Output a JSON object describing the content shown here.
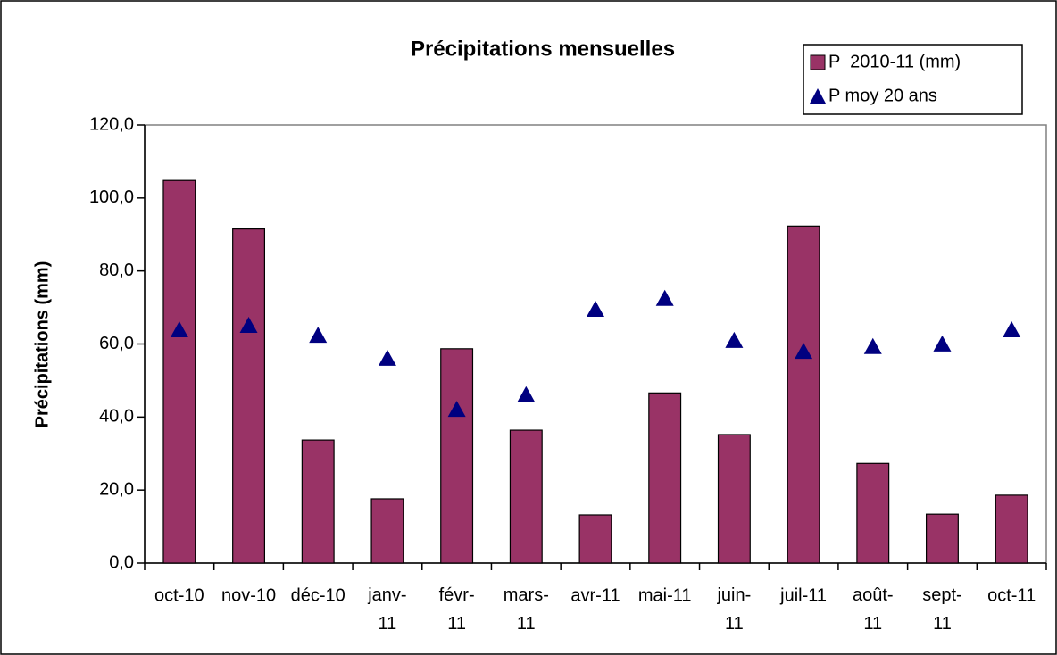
{
  "chart_data": {
    "type": "bar",
    "title": "Précipitations mensuelles",
    "y_label": "Précipitations (mm)",
    "categories": [
      "oct-10",
      "nov-10",
      "déc-10",
      "janv-11",
      "févr-11",
      "mars-11",
      "avr-11",
      "mai-11",
      "juin-11",
      "juil-11",
      "août-11",
      "sept-11",
      "oct-11"
    ],
    "series": [
      {
        "name": "P  2010-11 (mm)",
        "type": "bar",
        "color": "#993366",
        "values": [
          104.8,
          91.5,
          33.7,
          17.6,
          58.7,
          36.4,
          13.2,
          46.6,
          35.2,
          92.3,
          27.3,
          13.4,
          18.6
        ]
      },
      {
        "name": "P moy 20 ans",
        "type": "marker",
        "color": "#000080",
        "values": [
          63.8,
          65.0,
          62.3,
          56.0,
          42.0,
          46.0,
          69.4,
          72.4,
          60.9,
          57.9,
          59.2,
          59.9,
          63.8
        ]
      }
    ],
    "ylim": [
      0,
      120
    ],
    "yticks": [
      {
        "value": 0,
        "label": "0,0"
      },
      {
        "value": 20,
        "label": "20,0"
      },
      {
        "value": 40,
        "label": "40,0"
      },
      {
        "value": 60,
        "label": "60,0"
      },
      {
        "value": 80,
        "label": "80,0"
      },
      {
        "value": 100,
        "label": "100,0"
      },
      {
        "value": 120,
        "label": "120,0"
      }
    ],
    "grid": false,
    "legend": "top-right"
  }
}
